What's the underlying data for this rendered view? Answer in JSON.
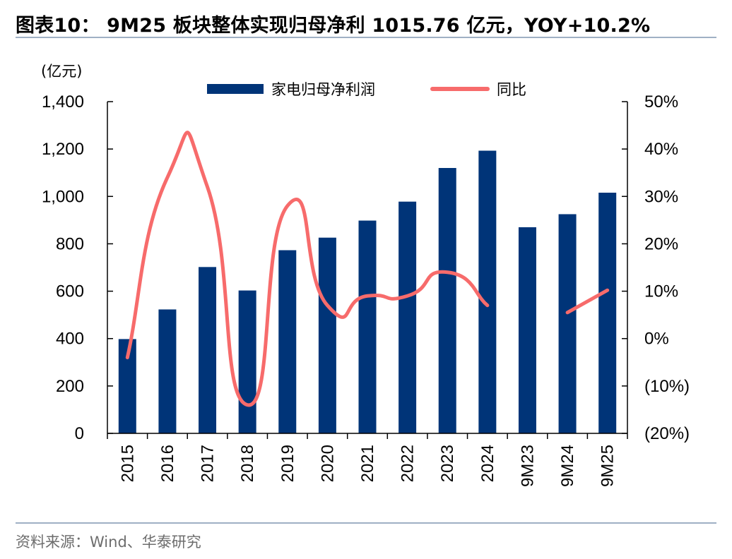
{
  "header": {
    "title": "图表10：  9M25 板块整体实现归母净利 1015.76 亿元，YOY+10.2%"
  },
  "footer": {
    "source": "资料来源：Wind、华泰研究"
  },
  "colors": {
    "bar": "#003478",
    "line": "#f76b6b",
    "rule": "#9fb0c4",
    "axis": "#000000"
  },
  "chart_data": {
    "type": "bar+line",
    "title": "9M25 板块整体实现归母净利 1015.76 亿元，YOY+10.2%",
    "y_left_unit": "(亿元)",
    "categories": [
      "2015",
      "2016",
      "2017",
      "2018",
      "2019",
      "2020",
      "2021",
      "2022",
      "2023",
      "2024",
      "9M23",
      "9M24",
      "9M25"
    ],
    "left_axis": {
      "min": 0,
      "max": 1400,
      "ticks": [
        0,
        200,
        400,
        600,
        800,
        1000,
        1200,
        1400
      ],
      "tick_labels": [
        "0",
        "200",
        "400",
        "600",
        "800",
        "1,000",
        "1,200",
        "1,400"
      ]
    },
    "right_axis": {
      "min": -20,
      "max": 50,
      "ticks": [
        -20,
        -10,
        0,
        10,
        20,
        30,
        40,
        50
      ],
      "tick_labels": [
        "(20%)",
        "(10%)",
        "0%",
        "10%",
        "20%",
        "30%",
        "40%",
        "50%"
      ]
    },
    "series": [
      {
        "name": "家电归母净利润",
        "type": "bar",
        "axis": "left",
        "values": [
          398,
          523,
          702,
          603,
          773,
          826,
          898,
          978,
          1120,
          1193,
          870,
          925,
          1015.76
        ]
      },
      {
        "name": "同比",
        "type": "line",
        "axis": "right",
        "values": [
          -4,
          34,
          32,
          -14,
          28,
          7,
          9,
          9,
          14,
          7,
          null,
          5.5,
          10.2
        ]
      }
    ],
    "legend_position": "top"
  }
}
